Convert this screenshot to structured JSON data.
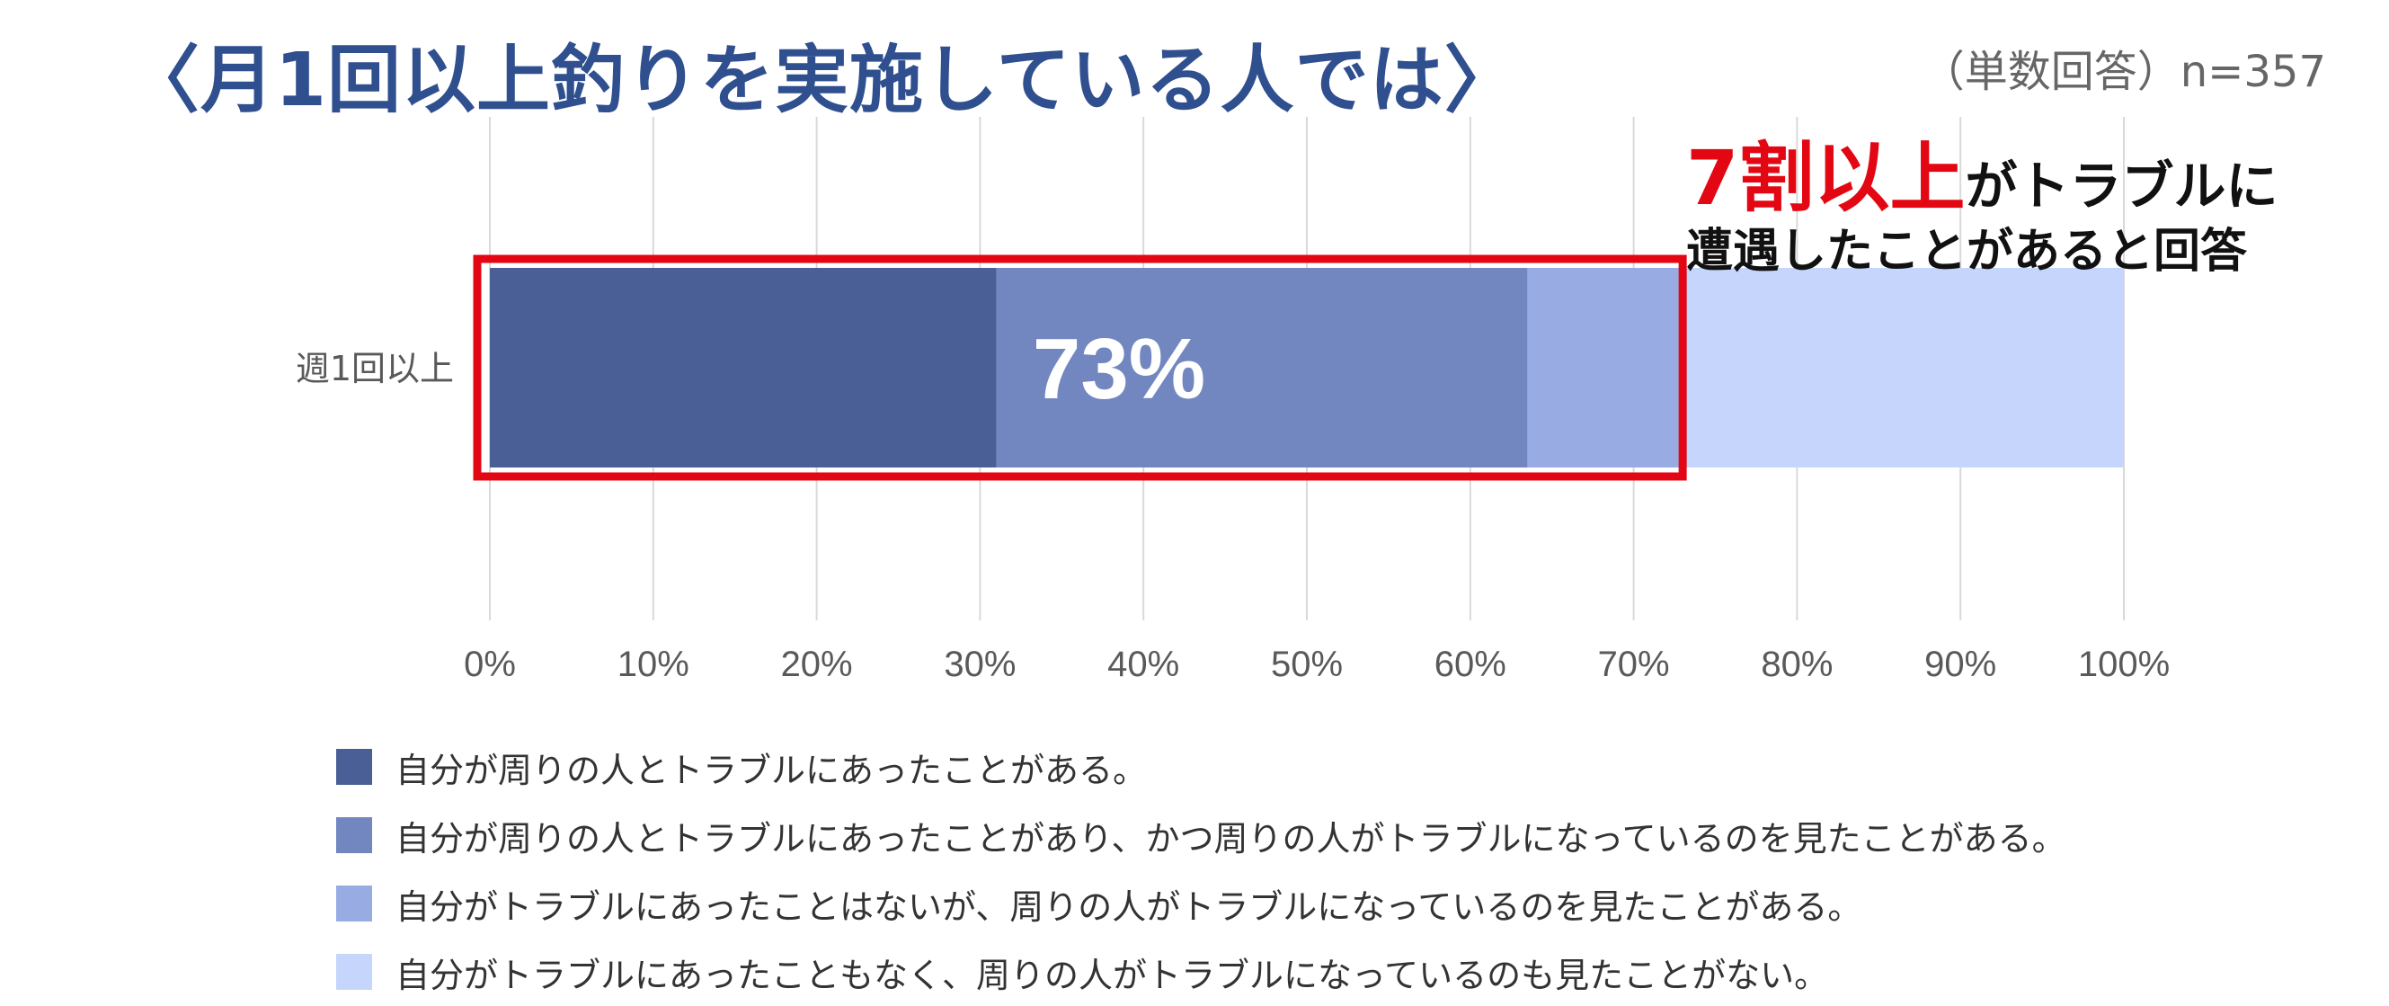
{
  "title": "〈月1回以上釣りを実施している人では〉",
  "sample_note": "（単数回答）n=357",
  "callout": {
    "highlight": "7割以上",
    "line1_rest": "がトラブルに",
    "line2": "遭遇したことがあると回答"
  },
  "colors": {
    "title": "#2f4f8f",
    "highlight": "#e30613",
    "box": "#e30613",
    "grid": "#d9d9d9"
  },
  "chart_data": {
    "type": "bar",
    "orientation": "horizontal",
    "stacked": true,
    "categories": [
      "週1回以上"
    ],
    "series": [
      {
        "name": "自分が周りの人とトラブルにあったことがある。",
        "values": [
          31
        ],
        "color": "#4a5f96"
      },
      {
        "name": "自分が周りの人とトラブルにあったことがあり、かつ周りの人がトラブルになっているのを見たことがある。",
        "values": [
          32.5
        ],
        "color": "#7287c0"
      },
      {
        "name": "自分がトラブルにあったことはないが、周りの人がトラブルになっているのを見たことがある。",
        "values": [
          9.5
        ],
        "color": "#99abe3"
      },
      {
        "name": "自分がトラブルにあったこともなく、周りの人がトラブルになっているのも見たことがない。",
        "values": [
          27
        ],
        "color": "#c5d5fb"
      }
    ],
    "xlim": [
      0,
      100
    ],
    "xticks": [
      "0%",
      "10%",
      "20%",
      "30%",
      "40%",
      "50%",
      "60%",
      "70%",
      "80%",
      "90%",
      "100%"
    ],
    "grid": true,
    "legend_position": "bottom",
    "annotation": {
      "text": "73%",
      "value": 73
    },
    "highlight_box_range": [
      0,
      73
    ]
  }
}
